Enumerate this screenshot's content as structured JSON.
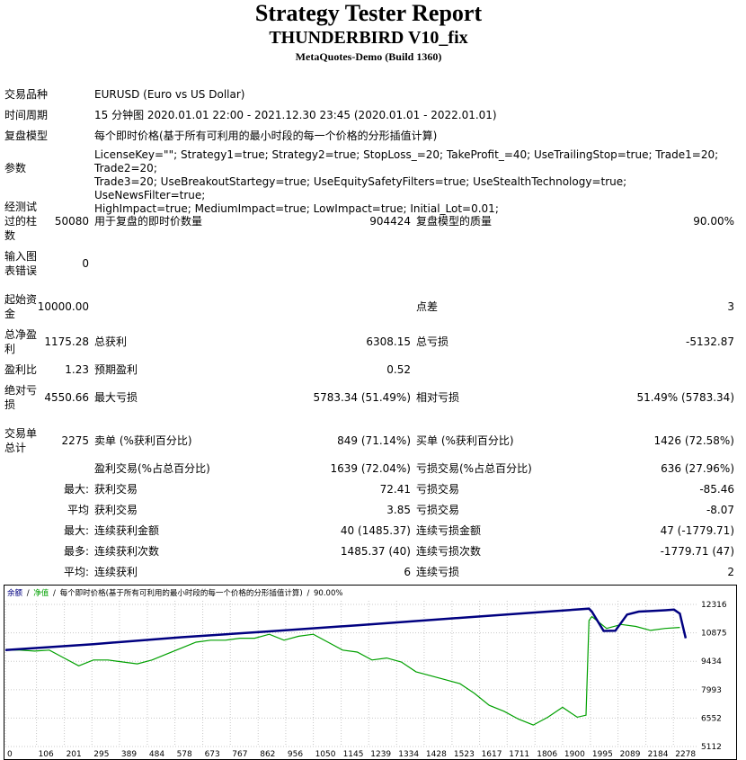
{
  "header": {
    "title": "Strategy Tester Report",
    "ea_name": "THUNDERBIRD V10_fix",
    "build": "MetaQuotes-Demo (Build 1360)"
  },
  "info": {
    "symbol_label": "交易品种",
    "symbol_value": "EURUSD (Euro vs US Dollar)",
    "period_label": "时间周期",
    "period_value": "15 分钟图 2020.01.01 22:00 - 2021.12.30 23:45 (2020.01.01 - 2022.01.01)",
    "model_label": "复盘模型",
    "model_value": "每个即时价格(基于所有可利用的最小时段的每一个价格的分形插值计算)",
    "params_label": "参数",
    "params_lines": [
      "LicenseKey=\"\"; Strategy1=true; Strategy2=true; StopLoss_=20; TakeProfit_=40; UseTrailingStop=true; Trade1=20; Trade2=20;",
      "Trade3=20; UseBreakoutStartegy=true; UseEquitySafetyFilters=true; UseStealthTechnology=true; UseNewsFilter=true;",
      "HighImpact=true; MediumImpact=true; LowImpact=true; Initial_Lot=0.01;"
    ]
  },
  "stats": {
    "bars_label": [
      "经测试",
      "过的柱",
      "数"
    ],
    "bars_value": "50080",
    "ticks_label": "用于复盘的即时价数量",
    "ticks_value": "904424",
    "quality_label": "复盘模型的质量",
    "quality_value": "90.00%",
    "errors_label": [
      "输入图",
      "表错误"
    ],
    "errors_value": "0",
    "deposit_label": [
      "起始资",
      "金"
    ],
    "deposit_value": "10000.00",
    "spread_label": "点差",
    "spread_value": "3",
    "net_label": [
      "总净盈",
      "利"
    ],
    "net_value": "1175.28",
    "gross_profit_label": "总获利",
    "gross_profit_value": "6308.15",
    "gross_loss_label": "总亏损",
    "gross_loss_value": "-5132.87",
    "pf_label": "盈利比",
    "pf_value": "1.23",
    "payoff_label": "预期盈利",
    "payoff_value": "0.52",
    "abs_dd_label": [
      "绝对亏",
      "损"
    ],
    "abs_dd_value": "4550.66",
    "max_dd_label": "最大亏损",
    "max_dd_value": "5783.34 (51.49%)",
    "rel_dd_label": "相对亏损",
    "rel_dd_value": "51.49% (5783.34)",
    "trades_label": [
      "交易单",
      "总计"
    ],
    "trades_value": "2275",
    "short_label": "卖单 (%获利百分比)",
    "short_value": "849 (71.14%)",
    "long_label": "买单 (%获利百分比)",
    "long_value": "1426 (72.58%)",
    "profit_trades_label": "盈利交易(%占总百分比)",
    "profit_trades_value": "1639 (72.04%)",
    "loss_trades_label": "亏损交易(%占总百分比)",
    "loss_trades_value": "636 (27.96%)",
    "largest_prefix": "最大:",
    "largest_profit_label": "获利交易",
    "largest_profit_value": "72.41",
    "largest_loss_label": "亏损交易",
    "largest_loss_value": "-85.46",
    "average_prefix": "平均",
    "avg_profit_label": "获利交易",
    "avg_profit_value": "3.85",
    "avg_loss_label": "亏损交易",
    "avg_loss_value": "-8.07",
    "max_prefix": "最大:",
    "max_cons_wins_label": "连续获利金额",
    "max_cons_wins_value": "40 (1485.37)",
    "max_cons_losses_label": "连续亏损金额",
    "max_cons_losses_value": "47 (-1779.71)",
    "maximal_prefix": "最多:",
    "maximal_cons_profit_label": "连续获利次数",
    "maximal_cons_profit_value": "1485.37 (40)",
    "maximal_cons_loss_label": "连续亏损次数",
    "maximal_cons_loss_value": "-1779.71 (47)",
    "avg_cons_prefix": "平均:",
    "avg_cons_wins_label": "连续获利",
    "avg_cons_wins_value": "6",
    "avg_cons_losses_label": "连续亏损",
    "avg_cons_losses_value": "2"
  },
  "chart_data": {
    "type": "line",
    "legend_balance": "余额",
    "legend_sep1": "/",
    "legend_equity": "净值",
    "legend_sep2": "/",
    "legend_model": "每个即时价格(基于所有可利用的最小时段的每一个价格的分形插值计算)",
    "legend_sep3": "/",
    "legend_quality": "90.00%",
    "balance_color": "#000080",
    "equity_color": "#00a000",
    "x_ticks": [
      0,
      106,
      201,
      295,
      389,
      484,
      578,
      673,
      767,
      862,
      956,
      1050,
      1145,
      1239,
      1334,
      1428,
      1523,
      1617,
      1711,
      1806,
      1900,
      1995,
      2089,
      2184,
      2278
    ],
    "y_ticks": [
      12316,
      10875,
      9434,
      7993,
      6552,
      5112
    ],
    "xlim": [
      0,
      2360
    ],
    "ylim": [
      5112,
      12316
    ],
    "series": [
      {
        "name": "余额",
        "x": [
          0,
          300,
          600,
          900,
          1200,
          1500,
          1800,
          1990,
          2000,
          2040,
          2080,
          2120,
          2160,
          2200,
          2250,
          2280,
          2300,
          2320
        ],
        "y": [
          10000,
          10300,
          10650,
          10950,
          11260,
          11580,
          11900,
          12100,
          11950,
          10970,
          10980,
          11800,
          11950,
          11980,
          12020,
          12050,
          11850,
          10600
        ]
      },
      {
        "name": "净值",
        "x": [
          0,
          50,
          100,
          150,
          200,
          250,
          300,
          350,
          400,
          450,
          500,
          550,
          600,
          650,
          700,
          750,
          800,
          850,
          900,
          950,
          1000,
          1050,
          1100,
          1150,
          1200,
          1250,
          1300,
          1350,
          1400,
          1450,
          1500,
          1550,
          1600,
          1650,
          1700,
          1750,
          1800,
          1850,
          1900,
          1950,
          1980,
          1990,
          2000,
          2050,
          2100,
          2150,
          2200,
          2250,
          2300
        ],
        "y": [
          10000,
          10000,
          9950,
          10000,
          9600,
          9200,
          9500,
          9500,
          9400,
          9300,
          9500,
          9800,
          10100,
          10400,
          10500,
          10500,
          10600,
          10600,
          10800,
          10500,
          10700,
          10800,
          10400,
          10000,
          9900,
          9500,
          9600,
          9400,
          8900,
          8700,
          8500,
          8300,
          7800,
          7200,
          6900,
          6500,
          6200,
          6600,
          7100,
          6600,
          6700,
          11500,
          11700,
          11100,
          11300,
          11200,
          11000,
          11100,
          11150
        ]
      }
    ]
  }
}
